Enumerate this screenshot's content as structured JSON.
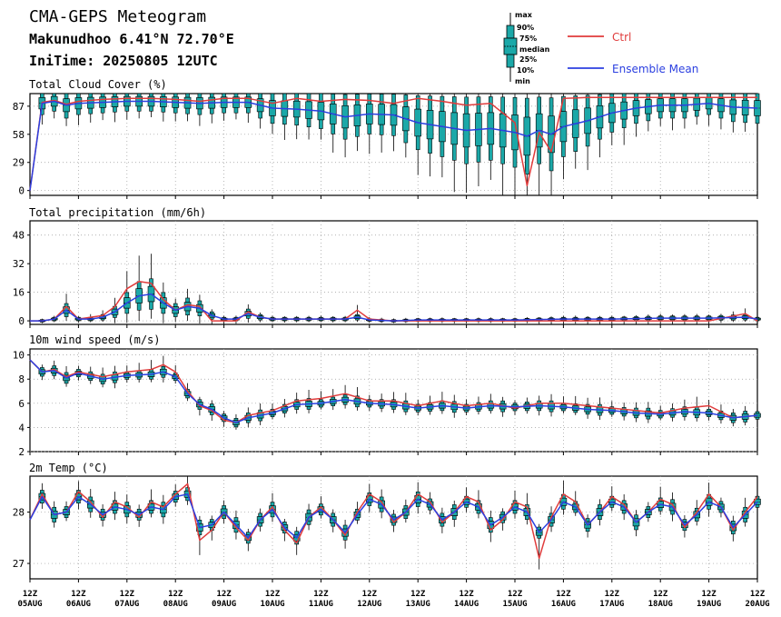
{
  "header": {
    "title": "CMA-GEPS Meteogram",
    "location": "Makunudhoo 6.41°N 72.70°E",
    "init_time": "IniTime: 20250805 12UTC"
  },
  "legend": {
    "box_labels": [
      "max",
      "90%",
      "75%",
      "median",
      "25%",
      "10%",
      "min"
    ],
    "ctrl_label": "Ctrl",
    "mean_label": "Ensemble Mean",
    "ctrl_color": "#e03c3c",
    "mean_color": "#2b3fe0",
    "box_color": "#1ba8a8"
  },
  "x_axis": {
    "ticks": [
      {
        "top": "12Z",
        "bottom": "05AUG"
      },
      {
        "top": "12Z",
        "bottom": "06AUG"
      },
      {
        "top": "12Z",
        "bottom": "07AUG"
      },
      {
        "top": "12Z",
        "bottom": "08AUG"
      },
      {
        "top": "12Z",
        "bottom": "09AUG"
      },
      {
        "top": "12Z",
        "bottom": "10AUG"
      },
      {
        "top": "12Z",
        "bottom": "11AUG"
      },
      {
        "top": "12Z",
        "bottom": "12AUG"
      },
      {
        "top": "12Z",
        "bottom": "13AUG"
      },
      {
        "top": "12Z",
        "bottom": "14AUG"
      },
      {
        "top": "12Z",
        "bottom": "15AUG"
      },
      {
        "top": "12Z",
        "bottom": "16AUG"
      },
      {
        "top": "12Z",
        "bottom": "17AUG"
      },
      {
        "top": "12Z",
        "bottom": "18AUG"
      },
      {
        "top": "12Z",
        "bottom": "19AUG"
      },
      {
        "top": "12Z",
        "bottom": "20AUG"
      }
    ],
    "range_days": [
      0,
      15
    ]
  },
  "chart_data": [
    {
      "type": "line",
      "title": "Total Cloud Cover (%)",
      "ylim": [
        -5,
        100
      ],
      "yticks": [
        0,
        29,
        58,
        87
      ],
      "grid": true,
      "x_days": [
        0,
        0.25,
        0.5,
        0.75,
        1.0,
        1.5,
        2.0,
        2.5,
        3.0,
        3.5,
        4.0,
        4.5,
        5.0,
        5.5,
        6.0,
        6.5,
        7.0,
        7.5,
        8.0,
        8.5,
        9.0,
        9.5,
        10.0,
        10.25,
        10.5,
        10.75,
        11.0,
        11.5,
        12.0,
        12.5,
        13.0,
        13.5,
        14.0,
        14.5,
        15.0
      ],
      "series": [
        {
          "name": "Ctrl",
          "values": [
            0,
            91,
            93,
            89,
            92,
            94,
            95,
            95,
            94,
            92,
            95,
            95,
            90,
            95,
            92,
            94,
            93,
            90,
            95,
            92,
            88,
            90,
            70,
            5,
            60,
            40,
            95,
            96,
            96,
            96,
            96,
            96,
            96,
            96,
            96
          ]
        },
        {
          "name": "Ensemble Mean",
          "values": [
            0,
            90,
            92,
            88,
            90,
            91,
            92,
            92,
            91,
            90,
            91,
            91,
            85,
            84,
            82,
            76,
            79,
            78,
            70,
            66,
            62,
            64,
            60,
            56,
            62,
            58,
            66,
            72,
            80,
            85,
            88,
            88,
            90,
            86,
            85
          ]
        }
      ]
    },
    {
      "type": "line",
      "title": "Total precipitation (mm/6h)",
      "ylim": [
        -2,
        56
      ],
      "yticks": [
        0,
        16,
        32,
        48
      ],
      "grid": true,
      "x_days": [
        0,
        0.25,
        0.5,
        0.75,
        1.0,
        1.25,
        1.5,
        1.75,
        2.0,
        2.25,
        2.5,
        2.75,
        3.0,
        3.25,
        3.5,
        3.75,
        4.0,
        4.25,
        4.5,
        4.75,
        5.0,
        5.5,
        6.0,
        6.5,
        6.75,
        7.0,
        7.5,
        8.0,
        9.0,
        10.0,
        11.0,
        12.0,
        13.0,
        14.0,
        14.75,
        15.0
      ],
      "series": [
        {
          "name": "Ctrl",
          "values": [
            0,
            0,
            1,
            8,
            1,
            2,
            3,
            8,
            18,
            22,
            21,
            12,
            6,
            9,
            8,
            0,
            0,
            0,
            5,
            2,
            1,
            1,
            1,
            1,
            6,
            1,
            0,
            0,
            0,
            0,
            0,
            0,
            0,
            0,
            4,
            0
          ]
        },
        {
          "name": "Ensemble Mean",
          "values": [
            0,
            0,
            1,
            6,
            1,
            1,
            2,
            5,
            10,
            14,
            15,
            10,
            6,
            8,
            7,
            3,
            1,
            1,
            4,
            2,
            1,
            1,
            1,
            1,
            2,
            0.5,
            0,
            0.5,
            0.5,
            0.5,
            1,
            1,
            1.5,
            1.5,
            2,
            1
          ]
        }
      ]
    },
    {
      "type": "line",
      "title": "10m wind speed (m/s)",
      "ylim": [
        2,
        10.5
      ],
      "yticks": [
        2,
        4,
        6,
        8,
        10
      ],
      "grid": true,
      "x_days": [
        0,
        0.25,
        0.5,
        0.75,
        1.0,
        1.5,
        2.0,
        2.5,
        2.75,
        3.0,
        3.25,
        3.5,
        3.75,
        4.0,
        4.25,
        4.5,
        5.0,
        5.5,
        6.0,
        6.5,
        7.0,
        7.5,
        8.0,
        8.5,
        9.0,
        9.5,
        10.0,
        10.5,
        11.0,
        11.5,
        12.0,
        12.5,
        13.0,
        13.5,
        14.0,
        14.5,
        15.0
      ],
      "series": [
        {
          "name": "Ctrl",
          "values": [
            9.6,
            8.6,
            8.8,
            8.2,
            8.6,
            8.2,
            8.6,
            8.8,
            9.2,
            8.6,
            7.0,
            5.8,
            5.4,
            4.6,
            4.4,
            5.0,
            5.4,
            6.2,
            6.4,
            6.8,
            6.2,
            6.2,
            5.8,
            6.2,
            5.8,
            6.0,
            5.6,
            6.0,
            6.0,
            5.8,
            5.6,
            5.4,
            5.2,
            5.6,
            5.8,
            4.8,
            5.0
          ]
        },
        {
          "name": "Ensemble Mean",
          "values": [
            9.6,
            8.6,
            8.7,
            8.1,
            8.5,
            8.0,
            8.3,
            8.4,
            8.6,
            8.2,
            6.8,
            5.9,
            5.5,
            4.8,
            4.4,
            4.8,
            5.2,
            5.9,
            6.0,
            6.3,
            6.0,
            5.9,
            5.6,
            5.8,
            5.6,
            5.8,
            5.7,
            5.8,
            5.7,
            5.5,
            5.4,
            5.2,
            5.1,
            5.3,
            5.2,
            4.8,
            5.0
          ]
        }
      ]
    },
    {
      "type": "line",
      "title": "2m Temp (°C)",
      "ylim": [
        26.7,
        28.7
      ],
      "yticks": [
        27,
        28
      ],
      "grid": true,
      "x_days": [
        0,
        0.25,
        0.5,
        0.75,
        1.0,
        1.25,
        1.5,
        1.75,
        2.0,
        2.25,
        2.5,
        2.75,
        3.0,
        3.25,
        3.5,
        3.75,
        4.0,
        4.25,
        4.5,
        4.75,
        5.0,
        5.25,
        5.5,
        5.75,
        6.0,
        6.25,
        6.5,
        6.75,
        7.0,
        7.25,
        7.5,
        7.75,
        8.0,
        8.25,
        8.5,
        8.75,
        9.0,
        9.25,
        9.5,
        9.75,
        10.0,
        10.25,
        10.5,
        10.75,
        11.0,
        11.25,
        11.5,
        11.75,
        12.0,
        12.25,
        12.5,
        12.75,
        13.0,
        13.25,
        13.5,
        13.75,
        14.0,
        14.25,
        14.5,
        14.75,
        15.0
      ],
      "series": [
        {
          "name": "Ctrl",
          "values": [
            27.85,
            28.35,
            27.95,
            28.0,
            28.4,
            28.2,
            27.9,
            28.2,
            28.1,
            27.9,
            28.2,
            28.1,
            28.35,
            28.55,
            27.45,
            27.65,
            28.0,
            27.7,
            27.45,
            27.85,
            28.1,
            27.65,
            27.4,
            27.9,
            28.1,
            27.85,
            27.55,
            28.0,
            28.35,
            28.2,
            27.8,
            28.0,
            28.35,
            28.2,
            27.8,
            28.0,
            28.3,
            28.2,
            27.65,
            27.85,
            28.2,
            28.1,
            27.1,
            27.9,
            28.35,
            28.2,
            27.75,
            28.0,
            28.3,
            28.15,
            27.8,
            28.0,
            28.25,
            28.15,
            27.7,
            28.0,
            28.35,
            28.1,
            27.65,
            28.0,
            28.3
          ]
        },
        {
          "name": "Ensemble Mean",
          "values": [
            27.85,
            28.3,
            27.95,
            28.0,
            28.3,
            28.15,
            27.95,
            28.1,
            28.05,
            27.95,
            28.1,
            28.05,
            28.3,
            28.35,
            27.7,
            27.75,
            28.0,
            27.75,
            27.5,
            27.85,
            28.05,
            27.7,
            27.5,
            27.9,
            28.05,
            27.85,
            27.6,
            27.95,
            28.25,
            28.15,
            27.85,
            28.0,
            28.25,
            28.15,
            27.85,
            28.0,
            28.2,
            28.1,
            27.75,
            27.9,
            28.1,
            28.0,
            27.6,
            27.85,
            28.2,
            28.1,
            27.75,
            28.0,
            28.2,
            28.1,
            27.8,
            28.0,
            28.15,
            28.1,
            27.75,
            27.95,
            28.2,
            28.1,
            27.7,
            27.95,
            28.2
          ]
        }
      ]
    }
  ]
}
